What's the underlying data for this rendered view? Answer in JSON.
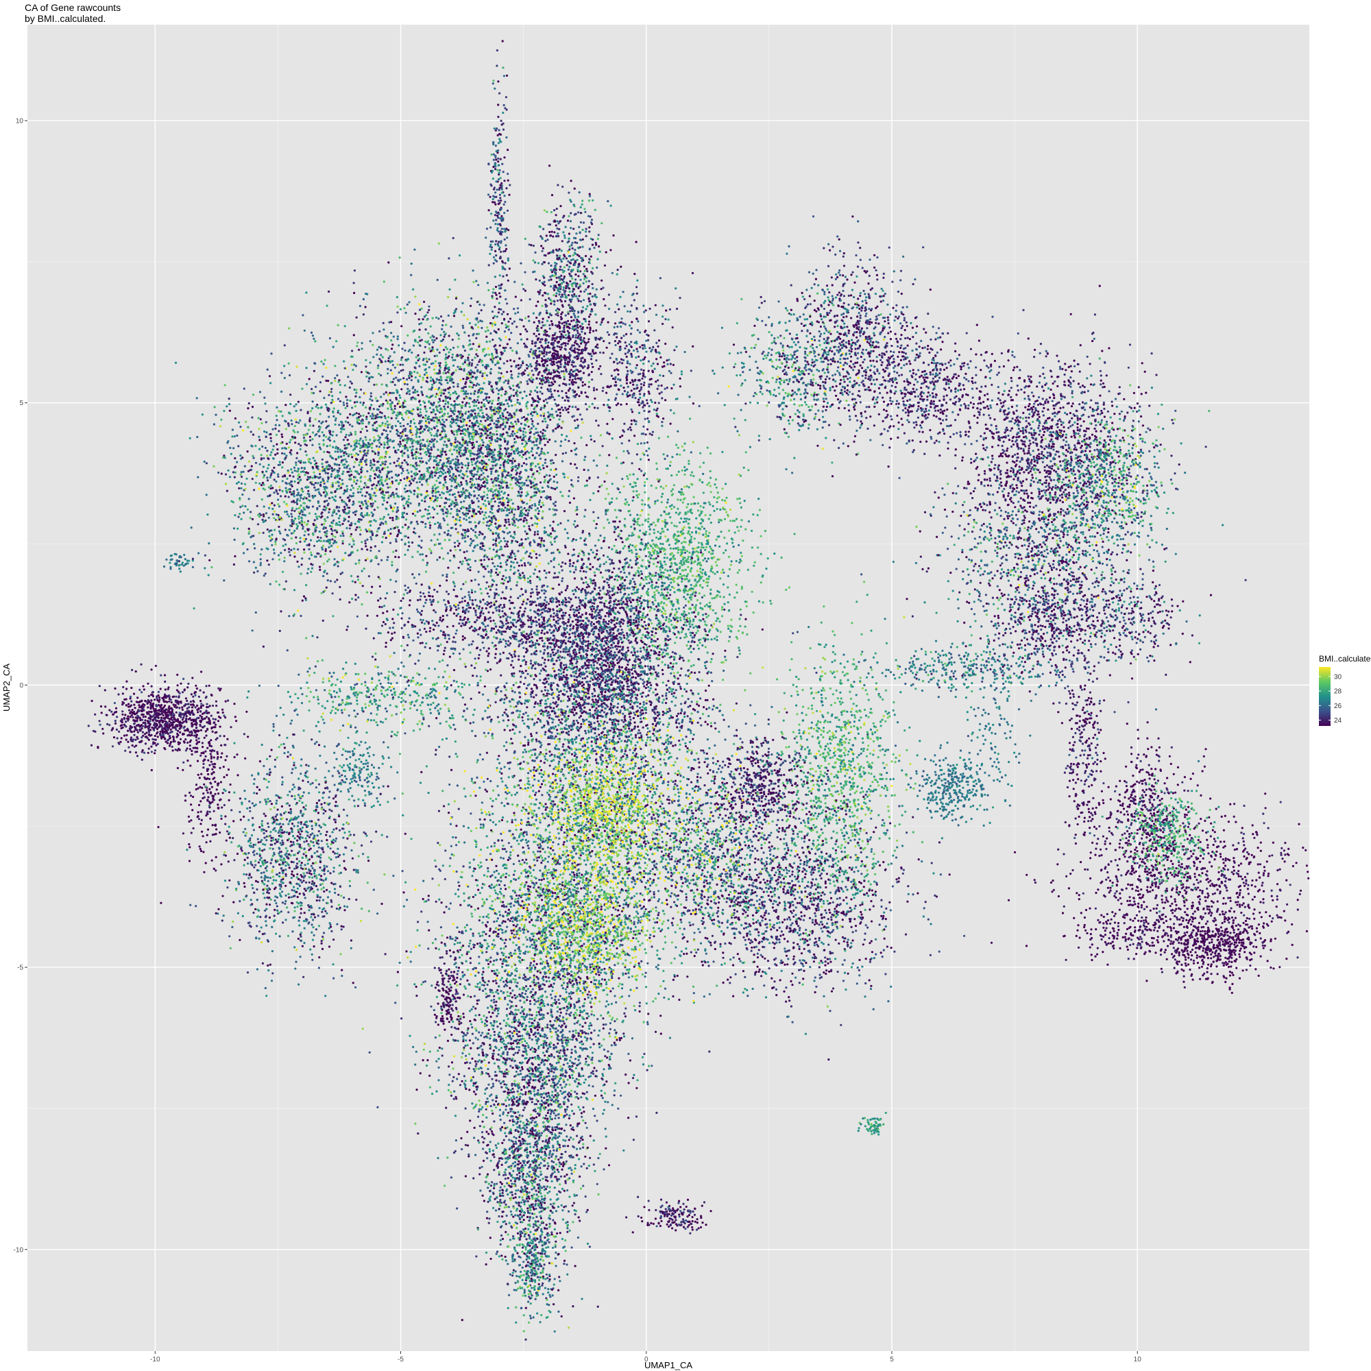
{
  "chart_data": {
    "type": "scatter",
    "title": "CA of Gene rawcounts",
    "subtitle": "by BMI..calculated.",
    "xlabel": "UMAP1_CA",
    "ylabel": "UMAP2_CA",
    "xlim": [
      -12.6,
      13.5
    ],
    "ylim": [
      -11.8,
      11.7
    ],
    "x_ticks": [
      -10,
      -5,
      0,
      5,
      10
    ],
    "y_ticks": [
      -10,
      -5,
      0,
      5,
      10
    ],
    "x_tick_labels": [
      "-10",
      "-5",
      "0",
      "5",
      "10"
    ],
    "y_tick_labels": [
      "-10",
      "-5",
      "0",
      "5",
      "10"
    ],
    "grid": true,
    "legend": {
      "title": "BMI..calculated.",
      "placement": "right",
      "type": "colorbar",
      "range": [
        23.2,
        31.3
      ],
      "ticks": [
        24,
        26,
        28,
        30
      ],
      "tick_labels": [
        "24",
        "26",
        "28",
        "30"
      ]
    },
    "colors": {
      "panel_background": "#e5e5e5",
      "gridline": "#ffffff",
      "viridis_low": "#440154",
      "viridis_mid": "#21918c",
      "viridis_high": "#fde725"
    },
    "clusters": [
      {
        "center": [
          -9.8,
          -0.6
        ],
        "spread": [
          0.55,
          0.3
        ],
        "count": 900,
        "bmi": [
          23.4,
          0.8
        ]
      },
      {
        "center": [
          -8.9,
          -1.9
        ],
        "spread": [
          0.25,
          0.7
        ],
        "count": 220,
        "bmi": [
          23.3,
          0.5
        ]
      },
      {
        "center": [
          -7.2,
          -3.0
        ],
        "spread": [
          0.65,
          0.9
        ],
        "count": 1100,
        "bmi": [
          25.6,
          2.0
        ]
      },
      {
        "center": [
          -5.8,
          -1.5
        ],
        "spread": [
          0.3,
          0.3
        ],
        "count": 150,
        "bmi": [
          26.7,
          0.8
        ]
      },
      {
        "center": [
          -5.4,
          -0.2
        ],
        "spread": [
          1.0,
          0.3
        ],
        "count": 400,
        "bmi": [
          27.8,
          1.6
        ]
      },
      {
        "center": [
          -9.55,
          2.2
        ],
        "spread": [
          0.12,
          0.08
        ],
        "count": 40,
        "bmi": [
          26.5,
          0.8
        ]
      },
      {
        "center": [
          -6.6,
          3.5
        ],
        "spread": [
          1.0,
          0.9
        ],
        "count": 1600,
        "bmi": [
          26.0,
          2.2
        ]
      },
      {
        "center": [
          -4.4,
          4.5
        ],
        "spread": [
          1.0,
          1.1
        ],
        "count": 2000,
        "bmi": [
          26.4,
          2.2
        ]
      },
      {
        "center": [
          -2.9,
          3.8
        ],
        "spread": [
          0.8,
          1.3
        ],
        "count": 2000,
        "bmi": [
          25.8,
          2.3
        ]
      },
      {
        "center": [
          -3.0,
          8.3
        ],
        "spread": [
          0.1,
          1.1
        ],
        "count": 250,
        "bmi": [
          24.8,
          1.8
        ]
      },
      {
        "center": [
          -1.6,
          7.3
        ],
        "spread": [
          0.35,
          0.7
        ],
        "count": 500,
        "bmi": [
          25.2,
          2.0
        ]
      },
      {
        "center": [
          -1.7,
          5.8
        ],
        "spread": [
          0.4,
          0.5
        ],
        "count": 600,
        "bmi": [
          23.6,
          0.9
        ]
      },
      {
        "center": [
          -0.2,
          5.5
        ],
        "spread": [
          0.4,
          0.8
        ],
        "count": 400,
        "bmi": [
          24.5,
          1.6
        ]
      },
      {
        "center": [
          0.6,
          2.1
        ],
        "spread": [
          0.75,
          0.9
        ],
        "count": 1300,
        "bmi": [
          28.3,
          1.0
        ]
      },
      {
        "center": [
          -0.8,
          1.2
        ],
        "spread": [
          0.7,
          0.8
        ],
        "count": 800,
        "bmi": [
          24.3,
          1.5
        ]
      },
      {
        "center": [
          -2.5,
          1.1
        ],
        "spread": [
          1.5,
          0.35
        ],
        "count": 900,
        "bmi": [
          24.2,
          1.5
        ]
      },
      {
        "center": [
          -1.0,
          0.0
        ],
        "spread": [
          1.0,
          0.6
        ],
        "count": 1600,
        "bmi": [
          24.4,
          1.6
        ]
      },
      {
        "center": [
          -1.0,
          -1.8
        ],
        "spread": [
          1.3,
          1.0
        ],
        "count": 2000,
        "bmi": [
          26.7,
          2.5
        ]
      },
      {
        "center": [
          -0.8,
          -2.3
        ],
        "spread": [
          0.6,
          0.6
        ],
        "count": 800,
        "bmi": [
          30.3,
          1.2
        ]
      },
      {
        "center": [
          -1.8,
          -4.1
        ],
        "spread": [
          1.2,
          0.9
        ],
        "count": 2000,
        "bmi": [
          26.3,
          2.5
        ]
      },
      {
        "center": [
          -1.2,
          -4.3
        ],
        "spread": [
          0.6,
          0.6
        ],
        "count": 700,
        "bmi": [
          29.8,
          1.2
        ]
      },
      {
        "center": [
          -2.3,
          -6.4
        ],
        "spread": [
          0.95,
          0.9
        ],
        "count": 1700,
        "bmi": [
          25.4,
          2.2
        ]
      },
      {
        "center": [
          -2.3,
          -8.6
        ],
        "spread": [
          0.5,
          0.9
        ],
        "count": 1200,
        "bmi": [
          25.6,
          2.2
        ]
      },
      {
        "center": [
          -2.3,
          -10.3
        ],
        "spread": [
          0.2,
          0.45
        ],
        "count": 300,
        "bmi": [
          26.6,
          2.0
        ]
      },
      {
        "center": [
          -4.0,
          -5.5
        ],
        "spread": [
          0.15,
          0.4
        ],
        "count": 150,
        "bmi": [
          23.4,
          0.6
        ]
      },
      {
        "center": [
          3.9,
          -1.7
        ],
        "spread": [
          0.6,
          1.1
        ],
        "count": 1100,
        "bmi": [
          28.3,
          1.2
        ]
      },
      {
        "center": [
          2.3,
          -1.8
        ],
        "spread": [
          0.5,
          0.4
        ],
        "count": 500,
        "bmi": [
          23.8,
          1.2
        ]
      },
      {
        "center": [
          2.9,
          -3.9
        ],
        "spread": [
          1.1,
          0.8
        ],
        "count": 1300,
        "bmi": [
          24.4,
          1.8
        ]
      },
      {
        "center": [
          1.3,
          -3.0
        ],
        "spread": [
          0.7,
          0.7
        ],
        "count": 800,
        "bmi": [
          26.8,
          2.5
        ]
      },
      {
        "center": [
          3.1,
          5.6
        ],
        "spread": [
          0.6,
          0.6
        ],
        "count": 500,
        "bmi": [
          26.7,
          1.8
        ]
      },
      {
        "center": [
          4.3,
          6.1
        ],
        "spread": [
          0.6,
          0.8
        ],
        "count": 700,
        "bmi": [
          24.4,
          1.6
        ]
      },
      {
        "center": [
          5.7,
          5.3
        ],
        "spread": [
          0.7,
          0.5
        ],
        "count": 500,
        "bmi": [
          24.0,
          1.4
        ]
      },
      {
        "center": [
          8.2,
          4.2
        ],
        "spread": [
          0.9,
          0.8
        ],
        "count": 1400,
        "bmi": [
          23.9,
          1.3
        ]
      },
      {
        "center": [
          9.4,
          3.6
        ],
        "spread": [
          0.6,
          0.6
        ],
        "count": 600,
        "bmi": [
          27.4,
          1.8
        ]
      },
      {
        "center": [
          8.0,
          2.2
        ],
        "spread": [
          1.0,
          0.8
        ],
        "count": 900,
        "bmi": [
          25.6,
          2.0
        ]
      },
      {
        "center": [
          8.2,
          1.1
        ],
        "spread": [
          0.5,
          0.5
        ],
        "count": 400,
        "bmi": [
          23.8,
          1.3
        ]
      },
      {
        "center": [
          9.8,
          1.2
        ],
        "spread": [
          0.6,
          0.4
        ],
        "count": 300,
        "bmi": [
          24.4,
          1.6
        ]
      },
      {
        "center": [
          6.4,
          0.3
        ],
        "spread": [
          0.9,
          0.2
        ],
        "count": 300,
        "bmi": [
          26.6,
          1.2
        ]
      },
      {
        "center": [
          6.2,
          -1.8
        ],
        "spread": [
          0.35,
          0.3
        ],
        "count": 300,
        "bmi": [
          26.5,
          0.5
        ]
      },
      {
        "center": [
          7.1,
          -0.8
        ],
        "spread": [
          0.25,
          0.8
        ],
        "count": 120,
        "bmi": [
          26.5,
          0.6
        ]
      },
      {
        "center": [
          8.9,
          -1.0
        ],
        "spread": [
          0.2,
          0.9
        ],
        "count": 250,
        "bmi": [
          23.6,
          1.0
        ]
      },
      {
        "center": [
          10.2,
          -2.3
        ],
        "spread": [
          0.4,
          0.6
        ],
        "count": 400,
        "bmi": [
          23.4,
          0.7
        ]
      },
      {
        "center": [
          11.0,
          -3.5
        ],
        "spread": [
          1.2,
          0.6
        ],
        "count": 900,
        "bmi": [
          23.3,
          0.6
        ]
      },
      {
        "center": [
          11.6,
          -4.6
        ],
        "spread": [
          0.5,
          0.3
        ],
        "count": 500,
        "bmi": [
          23.2,
          0.4
        ]
      },
      {
        "center": [
          10.6,
          -2.7
        ],
        "spread": [
          0.4,
          0.4
        ],
        "count": 300,
        "bmi": [
          28.3,
          0.8
        ]
      },
      {
        "center": [
          9.9,
          -4.4
        ],
        "spread": [
          0.5,
          0.2
        ],
        "count": 150,
        "bmi": [
          23.4,
          0.6
        ]
      },
      {
        "center": [
          0.6,
          -9.4
        ],
        "spread": [
          0.3,
          0.12
        ],
        "count": 150,
        "bmi": [
          23.6,
          1.2
        ]
      },
      {
        "center": [
          4.6,
          -7.8
        ],
        "spread": [
          0.12,
          0.08
        ],
        "count": 60,
        "bmi": [
          27.6,
          0.8
        ]
      }
    ]
  }
}
